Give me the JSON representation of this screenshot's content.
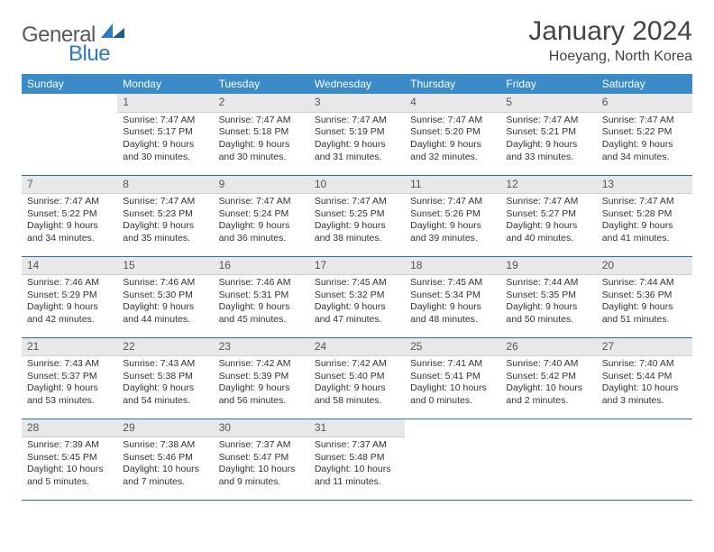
{
  "brand": {
    "name1": "General",
    "name2": "Blue"
  },
  "title": {
    "month": "January 2024",
    "location": "Hoeyang, North Korea"
  },
  "colors": {
    "header_bg": "#3b8bc9",
    "header_text": "#ffffff",
    "daynum_bg": "#e8e8e8",
    "row_border": "#2f6fa8",
    "text": "#333333",
    "brand_gray": "#5a5a5a",
    "brand_blue": "#2f7bbf"
  },
  "weekdays": [
    "Sunday",
    "Monday",
    "Tuesday",
    "Wednesday",
    "Thursday",
    "Friday",
    "Saturday"
  ],
  "start_offset": 1,
  "days": [
    {
      "n": 1,
      "sunrise": "7:47 AM",
      "sunset": "5:17 PM",
      "daylight": "9 hours and 30 minutes."
    },
    {
      "n": 2,
      "sunrise": "7:47 AM",
      "sunset": "5:18 PM",
      "daylight": "9 hours and 30 minutes."
    },
    {
      "n": 3,
      "sunrise": "7:47 AM",
      "sunset": "5:19 PM",
      "daylight": "9 hours and 31 minutes."
    },
    {
      "n": 4,
      "sunrise": "7:47 AM",
      "sunset": "5:20 PM",
      "daylight": "9 hours and 32 minutes."
    },
    {
      "n": 5,
      "sunrise": "7:47 AM",
      "sunset": "5:21 PM",
      "daylight": "9 hours and 33 minutes."
    },
    {
      "n": 6,
      "sunrise": "7:47 AM",
      "sunset": "5:22 PM",
      "daylight": "9 hours and 34 minutes."
    },
    {
      "n": 7,
      "sunrise": "7:47 AM",
      "sunset": "5:22 PM",
      "daylight": "9 hours and 34 minutes."
    },
    {
      "n": 8,
      "sunrise": "7:47 AM",
      "sunset": "5:23 PM",
      "daylight": "9 hours and 35 minutes."
    },
    {
      "n": 9,
      "sunrise": "7:47 AM",
      "sunset": "5:24 PM",
      "daylight": "9 hours and 36 minutes."
    },
    {
      "n": 10,
      "sunrise": "7:47 AM",
      "sunset": "5:25 PM",
      "daylight": "9 hours and 38 minutes."
    },
    {
      "n": 11,
      "sunrise": "7:47 AM",
      "sunset": "5:26 PM",
      "daylight": "9 hours and 39 minutes."
    },
    {
      "n": 12,
      "sunrise": "7:47 AM",
      "sunset": "5:27 PM",
      "daylight": "9 hours and 40 minutes."
    },
    {
      "n": 13,
      "sunrise": "7:47 AM",
      "sunset": "5:28 PM",
      "daylight": "9 hours and 41 minutes."
    },
    {
      "n": 14,
      "sunrise": "7:46 AM",
      "sunset": "5:29 PM",
      "daylight": "9 hours and 42 minutes."
    },
    {
      "n": 15,
      "sunrise": "7:46 AM",
      "sunset": "5:30 PM",
      "daylight": "9 hours and 44 minutes."
    },
    {
      "n": 16,
      "sunrise": "7:46 AM",
      "sunset": "5:31 PM",
      "daylight": "9 hours and 45 minutes."
    },
    {
      "n": 17,
      "sunrise": "7:45 AM",
      "sunset": "5:32 PM",
      "daylight": "9 hours and 47 minutes."
    },
    {
      "n": 18,
      "sunrise": "7:45 AM",
      "sunset": "5:34 PM",
      "daylight": "9 hours and 48 minutes."
    },
    {
      "n": 19,
      "sunrise": "7:44 AM",
      "sunset": "5:35 PM",
      "daylight": "9 hours and 50 minutes."
    },
    {
      "n": 20,
      "sunrise": "7:44 AM",
      "sunset": "5:36 PM",
      "daylight": "9 hours and 51 minutes."
    },
    {
      "n": 21,
      "sunrise": "7:43 AM",
      "sunset": "5:37 PM",
      "daylight": "9 hours and 53 minutes."
    },
    {
      "n": 22,
      "sunrise": "7:43 AM",
      "sunset": "5:38 PM",
      "daylight": "9 hours and 54 minutes."
    },
    {
      "n": 23,
      "sunrise": "7:42 AM",
      "sunset": "5:39 PM",
      "daylight": "9 hours and 56 minutes."
    },
    {
      "n": 24,
      "sunrise": "7:42 AM",
      "sunset": "5:40 PM",
      "daylight": "9 hours and 58 minutes."
    },
    {
      "n": 25,
      "sunrise": "7:41 AM",
      "sunset": "5:41 PM",
      "daylight": "10 hours and 0 minutes."
    },
    {
      "n": 26,
      "sunrise": "7:40 AM",
      "sunset": "5:42 PM",
      "daylight": "10 hours and 2 minutes."
    },
    {
      "n": 27,
      "sunrise": "7:40 AM",
      "sunset": "5:44 PM",
      "daylight": "10 hours and 3 minutes."
    },
    {
      "n": 28,
      "sunrise": "7:39 AM",
      "sunset": "5:45 PM",
      "daylight": "10 hours and 5 minutes."
    },
    {
      "n": 29,
      "sunrise": "7:38 AM",
      "sunset": "5:46 PM",
      "daylight": "10 hours and 7 minutes."
    },
    {
      "n": 30,
      "sunrise": "7:37 AM",
      "sunset": "5:47 PM",
      "daylight": "10 hours and 9 minutes."
    },
    {
      "n": 31,
      "sunrise": "7:37 AM",
      "sunset": "5:48 PM",
      "daylight": "10 hours and 11 minutes."
    }
  ],
  "labels": {
    "sunrise": "Sunrise:",
    "sunset": "Sunset:",
    "daylight": "Daylight:"
  }
}
